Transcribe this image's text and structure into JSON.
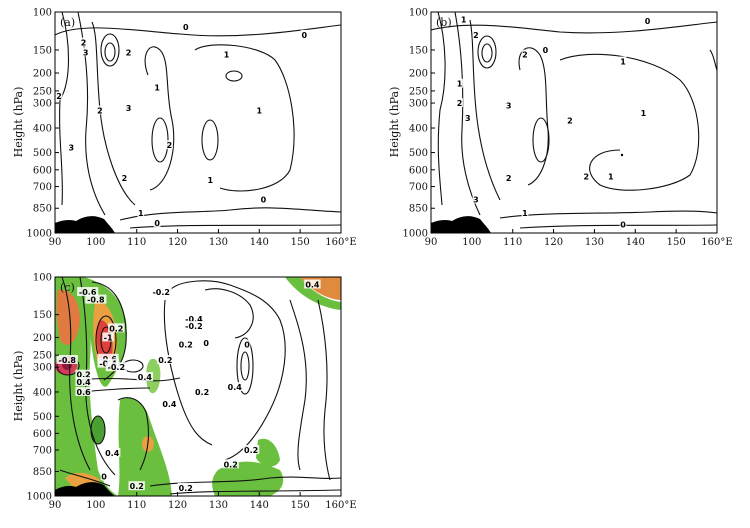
{
  "chart_data": [
    {
      "type": "contour",
      "panel_label": "(a)",
      "ylabel": "Height (hPa)",
      "x_ticks": [
        "90",
        "100",
        "110",
        "120",
        "130",
        "140",
        "150",
        "160°E"
      ],
      "y_ticks": [
        "100",
        "150",
        "200",
        "250",
        "300",
        "400",
        "500",
        "600",
        "700",
        "850",
        "1000"
      ],
      "xlim": [
        90,
        160
      ],
      "ylim": [
        1000,
        100
      ],
      "contour_labels": [
        {
          "text": "2",
          "x": 97,
          "y": 140
        },
        {
          "text": "3",
          "x": 97.5,
          "y": 155
        },
        {
          "text": "2",
          "x": 108,
          "y": 155
        },
        {
          "text": "0",
          "x": 122,
          "y": 120
        },
        {
          "text": "1",
          "x": 132,
          "y": 160
        },
        {
          "text": "0",
          "x": 151,
          "y": 130
        },
        {
          "text": "2",
          "x": 91,
          "y": 270
        },
        {
          "text": "1",
          "x": 115,
          "y": 240
        },
        {
          "text": "2",
          "x": 101,
          "y": 330
        },
        {
          "text": "3",
          "x": 108,
          "y": 320
        },
        {
          "text": "1",
          "x": 140,
          "y": 330
        },
        {
          "text": "3",
          "x": 94,
          "y": 480
        },
        {
          "text": "2",
          "x": 118,
          "y": 470
        },
        {
          "text": "2",
          "x": 107,
          "y": 650
        },
        {
          "text": "1",
          "x": 128,
          "y": 660
        },
        {
          "text": "0",
          "x": 141,
          "y": 790
        },
        {
          "text": "1",
          "x": 111,
          "y": 880
        },
        {
          "text": "0",
          "x": 115,
          "y": 940
        }
      ]
    },
    {
      "type": "contour",
      "panel_label": "(b)",
      "ylabel": "Height (hPa)",
      "x_ticks": [
        "90",
        "100",
        "110",
        "120",
        "130",
        "140",
        "150",
        "160°E"
      ],
      "y_ticks": [
        "100",
        "150",
        "200",
        "250",
        "300",
        "400",
        "500",
        "600",
        "700",
        "850",
        "1000"
      ],
      "xlim": [
        90,
        160
      ],
      "ylim": [
        1000,
        100
      ],
      "contour_labels": [
        {
          "text": "1",
          "x": 98,
          "y": 110
        },
        {
          "text": "2",
          "x": 101,
          "y": 130
        },
        {
          "text": "0",
          "x": 143,
          "y": 112
        },
        {
          "text": "2",
          "x": 113,
          "y": 160
        },
        {
          "text": "0",
          "x": 118,
          "y": 150
        },
        {
          "text": "1",
          "x": 137,
          "y": 175
        },
        {
          "text": "1",
          "x": 97,
          "y": 230
        },
        {
          "text": "2",
          "x": 97,
          "y": 300
        },
        {
          "text": "3",
          "x": 99,
          "y": 360
        },
        {
          "text": "3",
          "x": 109,
          "y": 310
        },
        {
          "text": "2",
          "x": 124,
          "y": 370
        },
        {
          "text": "1",
          "x": 142,
          "y": 340
        },
        {
          "text": "2",
          "x": 109,
          "y": 650
        },
        {
          "text": "2",
          "x": 128,
          "y": 640
        },
        {
          "text": "1",
          "x": 134,
          "y": 640
        },
        {
          "text": "3",
          "x": 101,
          "y": 790
        },
        {
          "text": "1",
          "x": 113,
          "y": 880
        },
        {
          "text": "0",
          "x": 137,
          "y": 950
        }
      ]
    },
    {
      "type": "contour",
      "panel_label": "(c)",
      "ylabel": "Height (hPa)",
      "x_ticks": [
        "90",
        "100",
        "110",
        "120",
        "130",
        "140",
        "150",
        "160°E"
      ],
      "y_ticks": [
        "100",
        "150",
        "200",
        "250",
        "300",
        "400",
        "500",
        "600",
        "700",
        "850",
        "1000"
      ],
      "xlim": [
        90,
        160
      ],
      "ylim": [
        1000,
        100
      ],
      "contour_labels": [
        {
          "text": "-0.6",
          "x": 98,
          "y": 120
        },
        {
          "text": "-0.8",
          "x": 100,
          "y": 130
        },
        {
          "text": "-0.2",
          "x": 116,
          "y": 120
        },
        {
          "text": "0.4",
          "x": 153,
          "y": 110
        },
        {
          "text": "-0.4",
          "x": 124,
          "y": 160
        },
        {
          "text": "-0.2",
          "x": 124,
          "y": 175
        },
        {
          "text": "0.2",
          "x": 105,
          "y": 180
        },
        {
          "text": "-1",
          "x": 103,
          "y": 200
        },
        {
          "text": "0.2",
          "x": 122,
          "y": 220
        },
        {
          "text": "0",
          "x": 127,
          "y": 215
        },
        {
          "text": "0",
          "x": 137,
          "y": 220
        },
        {
          "text": "-0.8",
          "x": 93,
          "y": 270
        },
        {
          "text": "-0.6",
          "x": 103,
          "y": 265
        },
        {
          "text": "-0.4",
          "x": 103,
          "y": 285
        },
        {
          "text": "-0.2",
          "x": 105,
          "y": 300
        },
        {
          "text": "0.2",
          "x": 117,
          "y": 270
        },
        {
          "text": "0.2",
          "x": 97,
          "y": 330
        },
        {
          "text": "0.4",
          "x": 97,
          "y": 360
        },
        {
          "text": "0.6",
          "x": 97,
          "y": 400
        },
        {
          "text": "0.4",
          "x": 112,
          "y": 340
        },
        {
          "text": "0.2",
          "x": 126,
          "y": 400
        },
        {
          "text": "0.4",
          "x": 134,
          "y": 380
        },
        {
          "text": "0.4",
          "x": 118,
          "y": 450
        },
        {
          "text": "0.4",
          "x": 104,
          "y": 720
        },
        {
          "text": "0.2",
          "x": 138,
          "y": 700
        },
        {
          "text": "0.2",
          "x": 133,
          "y": 800
        },
        {
          "text": "0",
          "x": 102,
          "y": 880
        },
        {
          "text": "0.2",
          "x": 110,
          "y": 940
        },
        {
          "text": "0.2",
          "x": 122,
          "y": 950
        }
      ]
    }
  ]
}
